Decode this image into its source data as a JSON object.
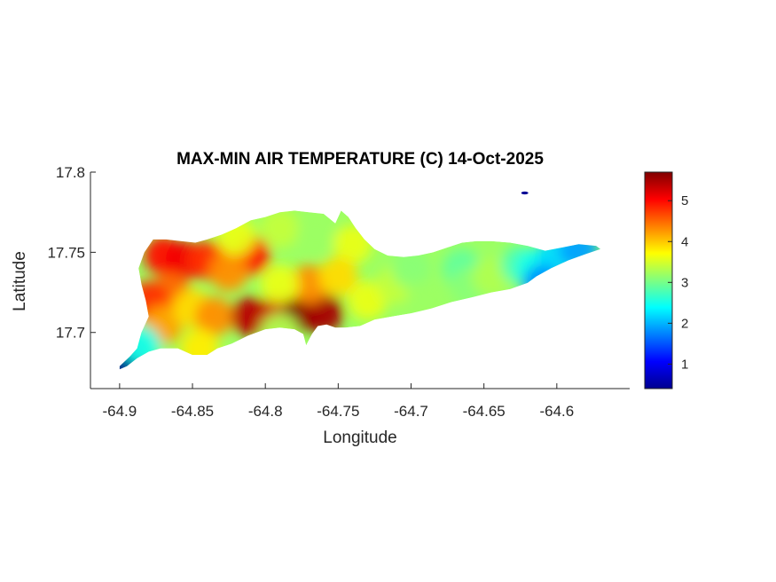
{
  "chart_data": {
    "type": "heatmap",
    "title": "MAX-MIN AIR TEMPERATURE (C) 14-Oct-2025",
    "xlabel": "Longitude",
    "ylabel": "Latitude",
    "xlim": [
      -64.92,
      -64.55
    ],
    "ylim": [
      17.665,
      17.8
    ],
    "x_ticks": [
      -64.9,
      -64.85,
      -64.8,
      -64.75,
      -64.7,
      -64.65,
      -64.6
    ],
    "x_tick_labels": [
      "-64.9",
      "-64.85",
      "-64.8",
      "-64.75",
      "-64.7",
      "-64.65",
      "-64.6"
    ],
    "y_ticks": [
      17.7,
      17.75,
      17.8
    ],
    "y_tick_labels": [
      "17.7",
      "17.75",
      "17.8"
    ],
    "colormap": "jet",
    "colorbar": {
      "range": [
        0.4,
        5.7
      ],
      "ticks": [
        1,
        2,
        3,
        4,
        5
      ],
      "tick_labels": [
        "1",
        "2",
        "3",
        "4",
        "5"
      ]
    },
    "grid": false,
    "island_outline": [
      [
        -64.9,
        17.679
      ],
      [
        -64.893,
        17.685
      ],
      [
        -64.888,
        17.69
      ],
      [
        -64.885,
        17.7
      ],
      [
        -64.88,
        17.71
      ],
      [
        -64.882,
        17.72
      ],
      [
        -64.885,
        17.73
      ],
      [
        -64.887,
        17.74
      ],
      [
        -64.883,
        17.75
      ],
      [
        -64.877,
        17.758
      ],
      [
        -64.868,
        17.758
      ],
      [
        -64.858,
        17.757
      ],
      [
        -64.848,
        17.756
      ],
      [
        -64.84,
        17.758
      ],
      [
        -64.83,
        17.761
      ],
      [
        -64.82,
        17.765
      ],
      [
        -64.81,
        17.77
      ],
      [
        -64.8,
        17.772
      ],
      [
        -64.79,
        17.775
      ],
      [
        -64.78,
        17.776
      ],
      [
        -64.77,
        17.775
      ],
      [
        -64.76,
        17.774
      ],
      [
        -64.752,
        17.768
      ],
      [
        -64.748,
        17.776
      ],
      [
        -64.743,
        17.772
      ],
      [
        -64.738,
        17.765
      ],
      [
        -64.732,
        17.758
      ],
      [
        -64.725,
        17.752
      ],
      [
        -64.716,
        17.748
      ],
      [
        -64.705,
        17.747
      ],
      [
        -64.695,
        17.748
      ],
      [
        -64.685,
        17.75
      ],
      [
        -64.675,
        17.753
      ],
      [
        -64.665,
        17.756
      ],
      [
        -64.655,
        17.757
      ],
      [
        -64.645,
        17.757
      ],
      [
        -64.632,
        17.756
      ],
      [
        -64.62,
        17.754
      ],
      [
        -64.608,
        17.751
      ],
      [
        -64.596,
        17.753
      ],
      [
        -64.585,
        17.755
      ],
      [
        -64.573,
        17.754
      ],
      [
        -64.57,
        17.752
      ],
      [
        -64.58,
        17.749
      ],
      [
        -64.592,
        17.745
      ],
      [
        -64.604,
        17.74
      ],
      [
        -64.614,
        17.735
      ],
      [
        -64.62,
        17.731
      ],
      [
        -64.632,
        17.727
      ],
      [
        -64.645,
        17.725
      ],
      [
        -64.658,
        17.722
      ],
      [
        -64.672,
        17.719
      ],
      [
        -64.686,
        17.715
      ],
      [
        -64.7,
        17.712
      ],
      [
        -64.713,
        17.71
      ],
      [
        -64.725,
        17.708
      ],
      [
        -64.735,
        17.704
      ],
      [
        -64.745,
        17.703
      ],
      [
        -64.752,
        17.703
      ],
      [
        -64.758,
        17.705
      ],
      [
        -64.764,
        17.704
      ],
      [
        -64.768,
        17.699
      ],
      [
        -64.772,
        17.692
      ],
      [
        -64.774,
        17.699
      ],
      [
        -64.78,
        17.702
      ],
      [
        -64.79,
        17.703
      ],
      [
        -64.8,
        17.702
      ],
      [
        -64.812,
        17.698
      ],
      [
        -64.823,
        17.693
      ],
      [
        -64.833,
        17.69
      ],
      [
        -64.84,
        17.686
      ],
      [
        -64.85,
        17.686
      ],
      [
        -64.86,
        17.69
      ],
      [
        -64.872,
        17.69
      ],
      [
        -64.88,
        17.688
      ],
      [
        -64.888,
        17.684
      ],
      [
        -64.895,
        17.679
      ],
      [
        -64.9,
        17.677
      ]
    ],
    "temperature_field": [
      {
        "lon": -64.87,
        "lat": 17.748,
        "value": 5.0
      },
      {
        "lon": -64.855,
        "lat": 17.745,
        "value": 5.1
      },
      {
        "lon": -64.84,
        "lat": 17.745,
        "value": 4.8
      },
      {
        "lon": -64.81,
        "lat": 17.748,
        "value": 5.0
      },
      {
        "lon": -64.865,
        "lat": 17.725,
        "value": 4.5
      },
      {
        "lon": -64.88,
        "lat": 17.72,
        "value": 4.8
      },
      {
        "lon": -64.87,
        "lat": 17.705,
        "value": 4.2
      },
      {
        "lon": -64.85,
        "lat": 17.715,
        "value": 3.9
      },
      {
        "lon": -64.835,
        "lat": 17.71,
        "value": 4.3
      },
      {
        "lon": -64.81,
        "lat": 17.71,
        "value": 5.4
      },
      {
        "lon": -64.79,
        "lat": 17.712,
        "value": 5.3
      },
      {
        "lon": -64.775,
        "lat": 17.712,
        "value": 5.7
      },
      {
        "lon": -64.76,
        "lat": 17.712,
        "value": 5.5
      },
      {
        "lon": -64.77,
        "lat": 17.73,
        "value": 4.3
      },
      {
        "lon": -64.79,
        "lat": 17.73,
        "value": 3.6
      },
      {
        "lon": -64.825,
        "lat": 17.738,
        "value": 4.3
      },
      {
        "lon": -64.82,
        "lat": 17.76,
        "value": 3.6
      },
      {
        "lon": -64.79,
        "lat": 17.765,
        "value": 3.4
      },
      {
        "lon": -64.765,
        "lat": 17.762,
        "value": 3.2
      },
      {
        "lon": -64.74,
        "lat": 17.755,
        "value": 3.6
      },
      {
        "lon": -64.75,
        "lat": 17.735,
        "value": 3.9
      },
      {
        "lon": -64.73,
        "lat": 17.72,
        "value": 3.6
      },
      {
        "lon": -64.71,
        "lat": 17.73,
        "value": 3.4
      },
      {
        "lon": -64.7,
        "lat": 17.74,
        "value": 3.1
      },
      {
        "lon": -64.69,
        "lat": 17.72,
        "value": 3.2
      },
      {
        "lon": -64.665,
        "lat": 17.74,
        "value": 2.9
      },
      {
        "lon": -64.66,
        "lat": 17.728,
        "value": 3.1
      },
      {
        "lon": -64.645,
        "lat": 17.735,
        "value": 3.3
      },
      {
        "lon": -64.625,
        "lat": 17.742,
        "value": 2.8
      },
      {
        "lon": -64.615,
        "lat": 17.74,
        "value": 2.5
      },
      {
        "lon": -64.6,
        "lat": 17.748,
        "value": 2.2
      },
      {
        "lon": -64.585,
        "lat": 17.752,
        "value": 1.9
      },
      {
        "lon": -64.61,
        "lat": 17.73,
        "value": 1.8
      },
      {
        "lon": -64.895,
        "lat": 17.682,
        "value": 0.5
      },
      {
        "lon": -64.885,
        "lat": 17.692,
        "value": 2.5
      },
      {
        "lon": -64.79,
        "lat": 17.7,
        "value": 3.3
      },
      {
        "lon": -64.845,
        "lat": 17.69,
        "value": 3.8
      }
    ],
    "islets": [
      {
        "lon": -64.622,
        "lat": 17.787,
        "value": 0.5
      }
    ]
  }
}
